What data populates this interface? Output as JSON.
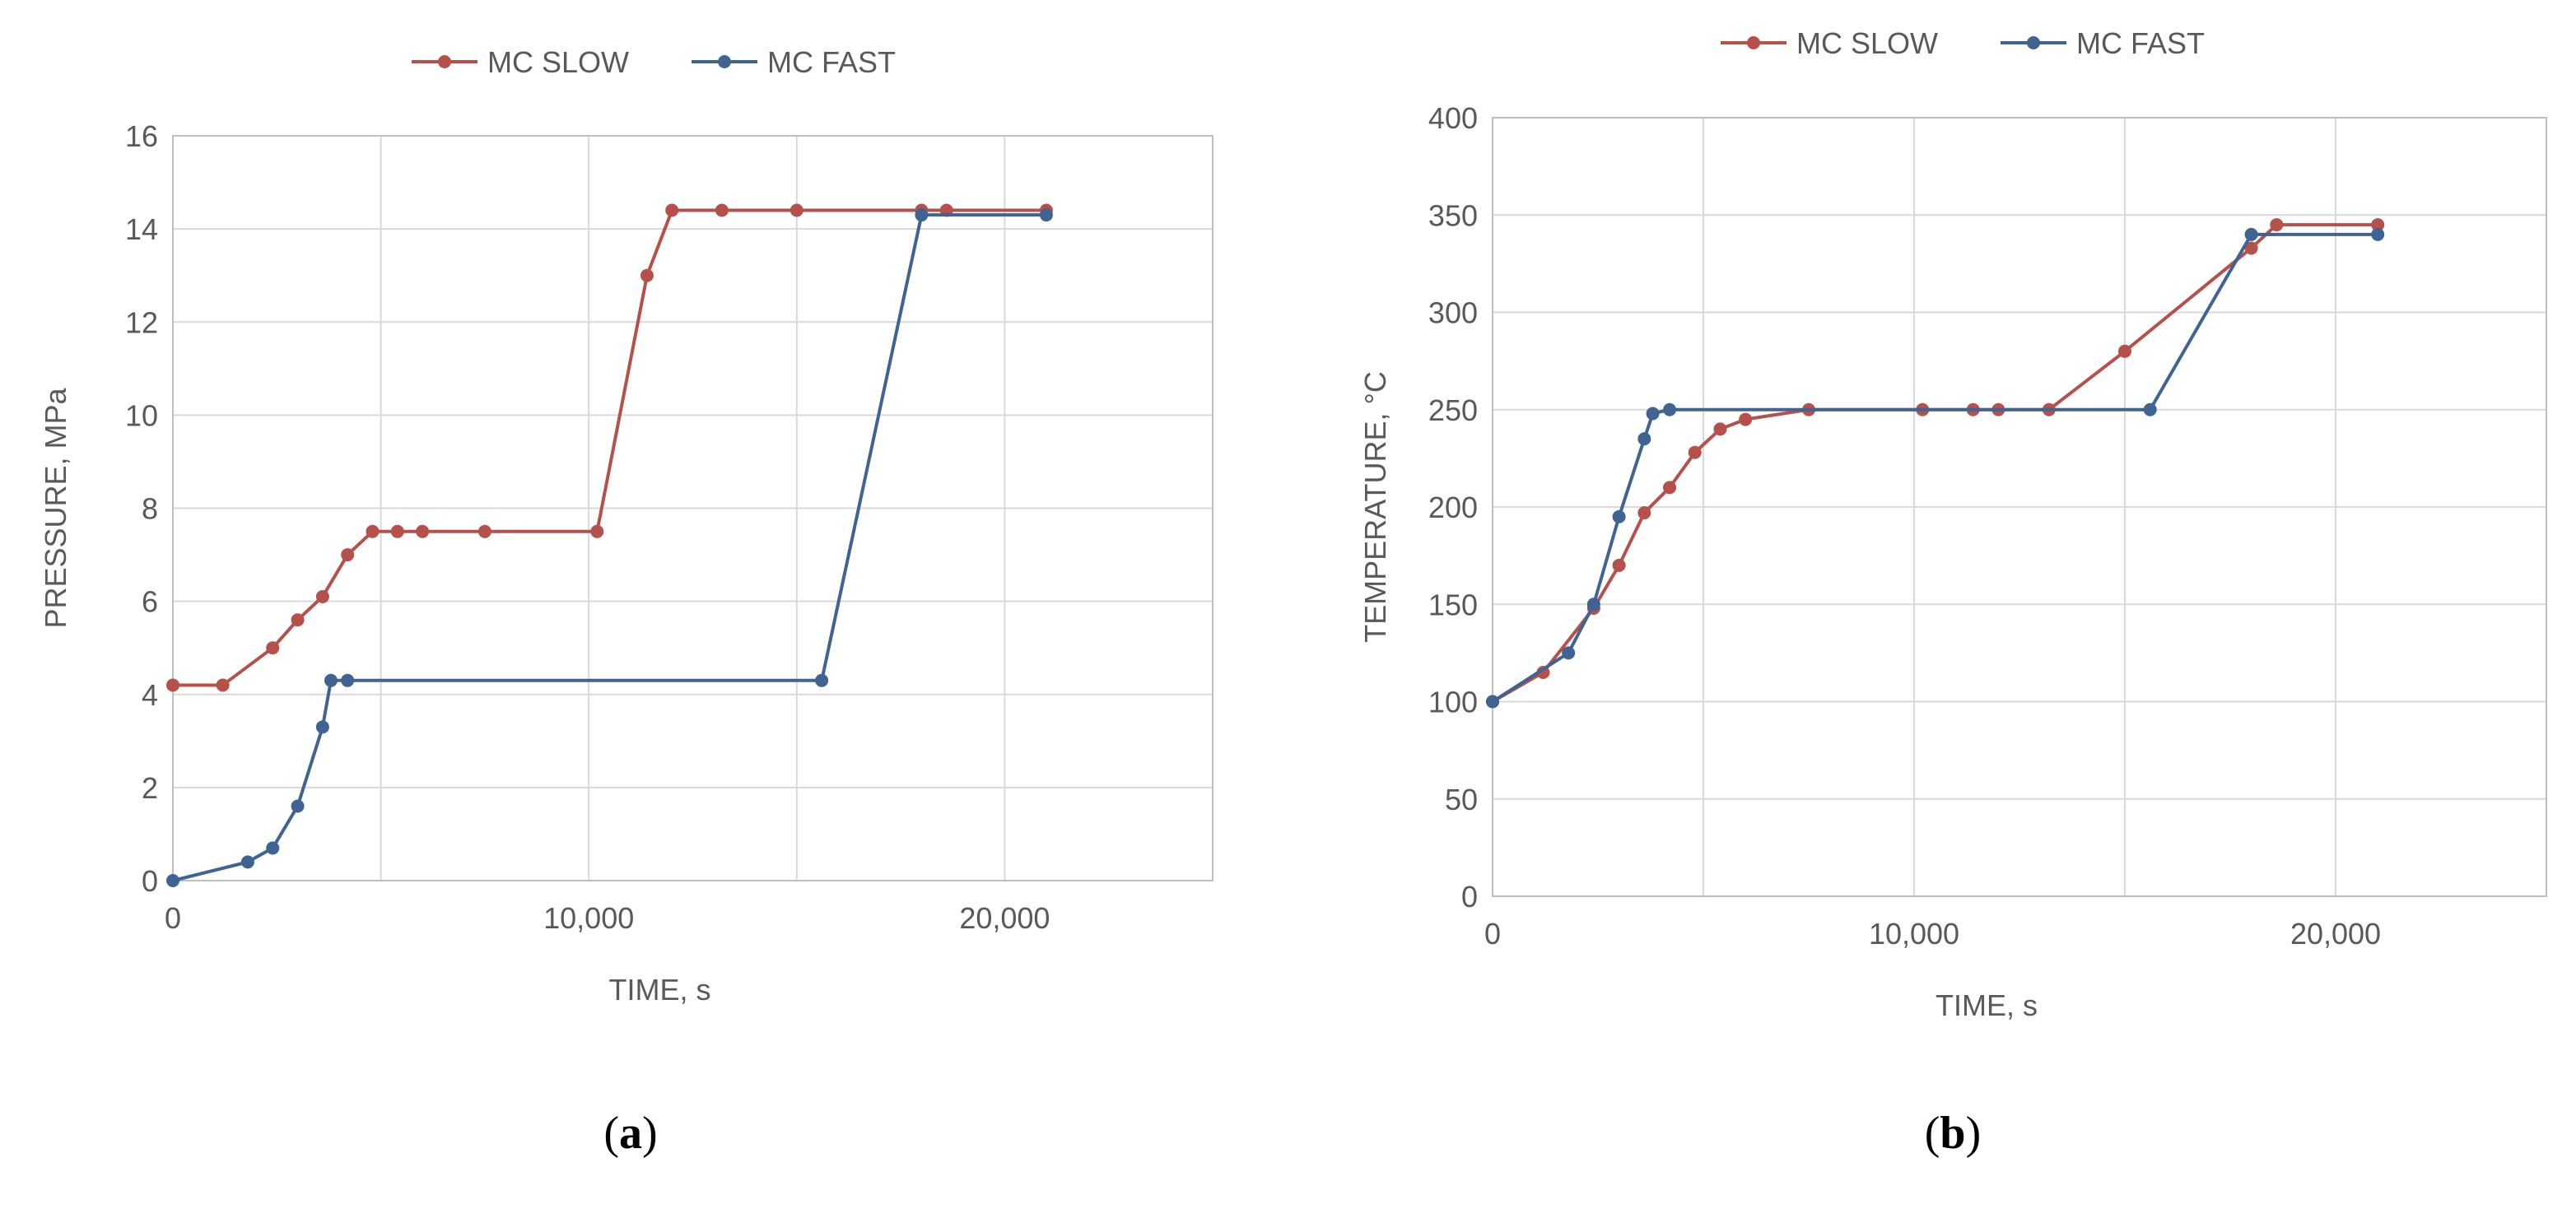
{
  "colors": {
    "slow": "#B5504B",
    "fast": "#3F6393"
  },
  "chart_data": [
    {
      "type": "line",
      "caption": "a",
      "xlabel": "TIME, s",
      "ylabel": "PRESSURE, MPa",
      "xlim": [
        0,
        25000
      ],
      "ylim": [
        0,
        16
      ],
      "xticks": [
        0,
        10000,
        20000
      ],
      "xtick_labels": [
        "0",
        "10,000",
        "20,000"
      ],
      "yticks": [
        0,
        2,
        4,
        6,
        8,
        10,
        12,
        14,
        16
      ],
      "ytick_labels": [
        "0",
        "2",
        "4",
        "6",
        "8",
        "10",
        "12",
        "14",
        "16"
      ],
      "xgrid": [
        0,
        5000,
        10000,
        15000,
        20000,
        25000
      ],
      "legend": [
        "MC SLOW",
        "MC FAST"
      ],
      "series": [
        {
          "name": "MC SLOW",
          "color": "slow",
          "x": [
            0,
            1200,
            2400,
            3000,
            3600,
            4200,
            4800,
            5400,
            6000,
            7500,
            10200,
            11400,
            12000,
            13200,
            15000,
            18000,
            18600,
            21000
          ],
          "y": [
            4.2,
            4.2,
            5.0,
            5.6,
            6.1,
            7.0,
            7.5,
            7.5,
            7.5,
            7.5,
            7.5,
            13.0,
            14.4,
            14.4,
            14.4,
            14.4,
            14.4,
            14.4
          ]
        },
        {
          "name": "MC FAST",
          "color": "fast",
          "x": [
            0,
            1800,
            2400,
            3000,
            3600,
            3800,
            4200,
            15600,
            18000,
            21000
          ],
          "y": [
            0,
            0.4,
            0.7,
            1.6,
            3.3,
            4.3,
            4.3,
            4.3,
            14.3,
            14.3
          ]
        }
      ]
    },
    {
      "type": "line",
      "caption": "b",
      "xlabel": "TIME, s",
      "ylabel": "TEMPERATURE,  °C",
      "xlim": [
        0,
        25000
      ],
      "ylim": [
        0,
        400
      ],
      "xticks": [
        0,
        10000,
        20000
      ],
      "xtick_labels": [
        "0",
        "10,000",
        "20,000"
      ],
      "yticks": [
        0,
        50,
        100,
        150,
        200,
        250,
        300,
        350,
        400
      ],
      "ytick_labels": [
        "0",
        "50",
        "100",
        "150",
        "200",
        "250",
        "300",
        "350",
        "400"
      ],
      "xgrid": [
        0,
        5000,
        10000,
        15000,
        20000,
        25000
      ],
      "legend": [
        "MC SLOW",
        "MC FAST"
      ],
      "series": [
        {
          "name": "MC SLOW",
          "color": "slow",
          "x": [
            0,
            1200,
            2400,
            3000,
            3600,
            4200,
            4800,
            5400,
            6000,
            7500,
            10200,
            11400,
            12000,
            13200,
            15000,
            18000,
            18600,
            21000
          ],
          "y": [
            100,
            115,
            148,
            170,
            197,
            210,
            228,
            240,
            245,
            250,
            250,
            250,
            250,
            250,
            280,
            333,
            345,
            345
          ]
        },
        {
          "name": "MC FAST",
          "color": "fast",
          "x": [
            0,
            1800,
            2400,
            3000,
            3600,
            3800,
            4200,
            15600,
            18000,
            21000
          ],
          "y": [
            100,
            125,
            150,
            195,
            235,
            248,
            250,
            250,
            340,
            340
          ]
        }
      ]
    }
  ]
}
